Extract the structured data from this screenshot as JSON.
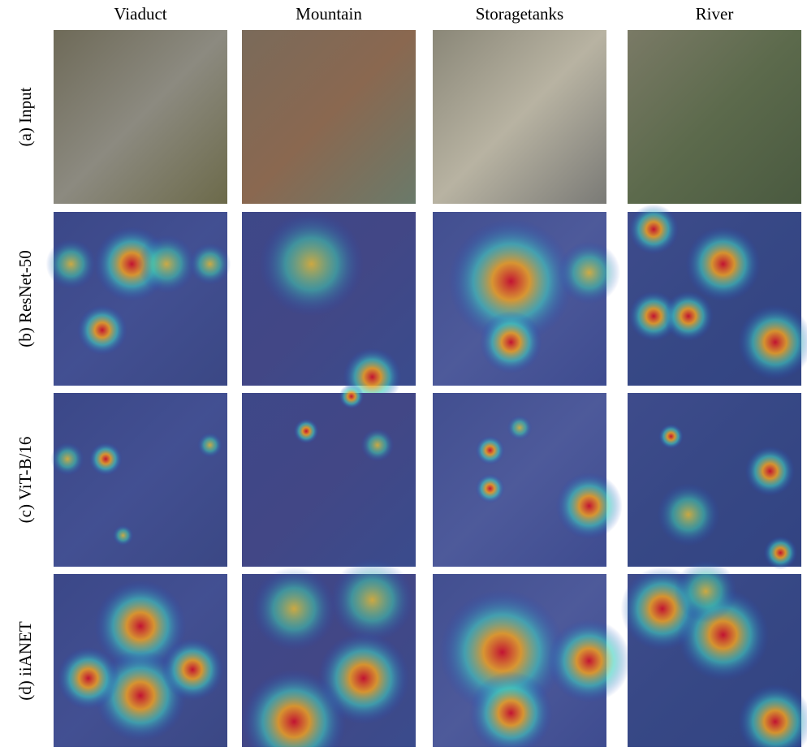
{
  "columns": [
    "Viaduct",
    "Mountain",
    "Storagetanks",
    "River"
  ],
  "rows": [
    "(a) Input",
    "(b) ResNet-50",
    "(c) ViT-B/16",
    "(d) iiANET"
  ]
}
